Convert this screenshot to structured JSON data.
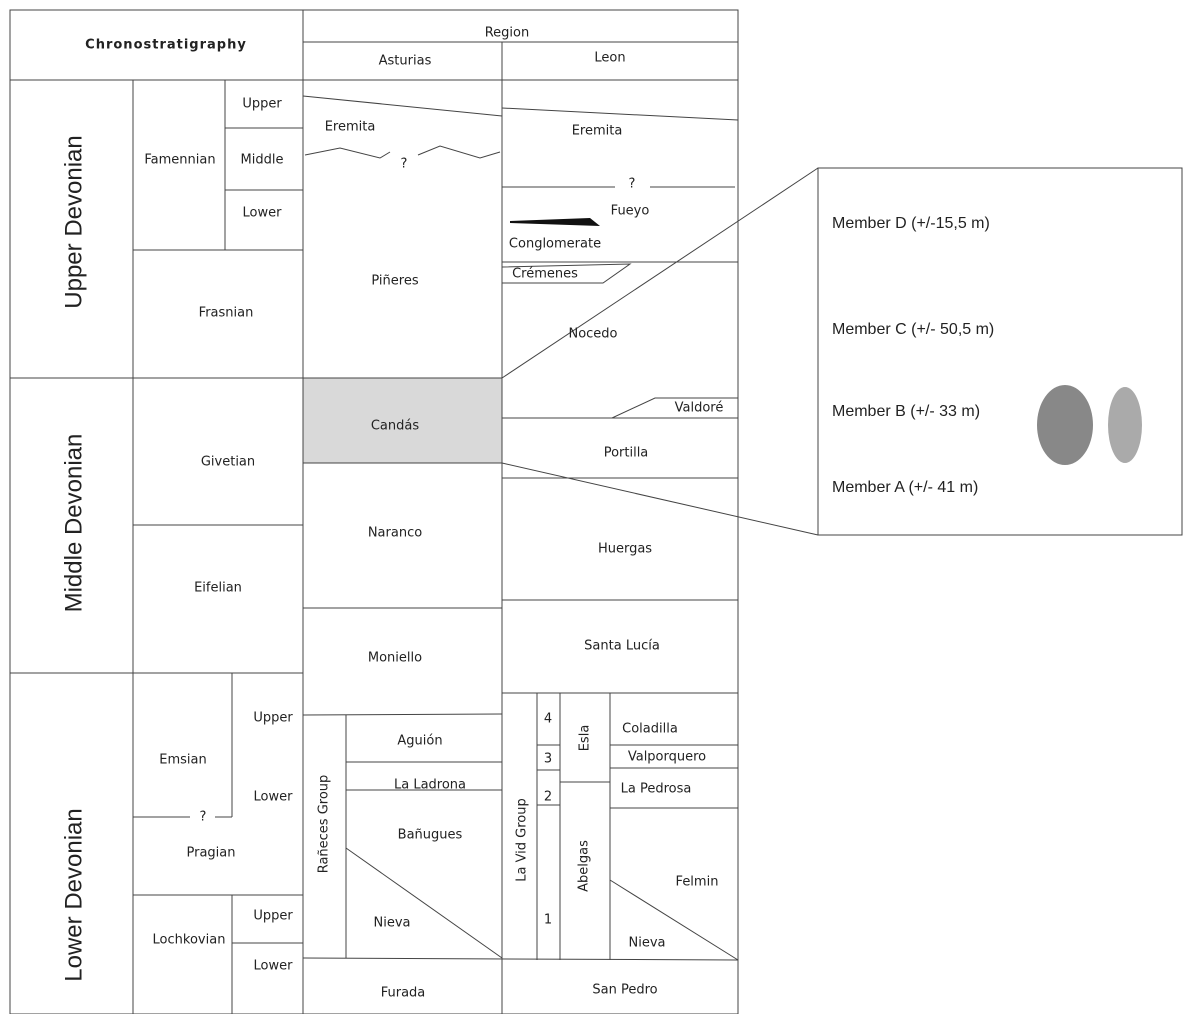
{
  "header": {
    "chronostratigraphy": "Chronostratigraphy",
    "region": "Region",
    "asturias": "Asturias",
    "leon": "Leon"
  },
  "series": [
    "Upper Devonian",
    "Middle Devonian",
    "Lower Devonian"
  ],
  "stages": [
    "Famennian",
    "Frasnian",
    "Givetian",
    "Eifelian",
    "Emsian",
    "Pragian",
    "Lochkovian"
  ],
  "substages": [
    "Upper",
    "Middle",
    "Lower",
    "Upper",
    "Lower",
    "Upper",
    "Lower"
  ],
  "question_marks": [
    "?",
    "?",
    "?"
  ],
  "asturias": {
    "formations": [
      "Eremita",
      "Piñeres",
      "Candás",
      "Naranco",
      "Moniello",
      "Aguión",
      "La Ladrona",
      "Bañugues",
      "Nieva",
      "Furada"
    ],
    "group": "Rañeces Group"
  },
  "leon": {
    "formations": [
      "Eremita",
      "Fueyo",
      "Conglomerate",
      "Crémenes",
      "Nocedo",
      "Valdoré",
      "Portilla",
      "Huergas",
      "Santa Lucía",
      "Coladilla",
      "Valporquero",
      "La Pedrosa",
      "Felmin",
      "Nieva",
      "San Pedro",
      "Abelgas",
      "Esla"
    ],
    "group": "La Vid Group",
    "units": [
      4,
      3,
      2,
      1
    ]
  },
  "members": [
    "Member D (+/-15,5 m)",
    "Member C (+/- 50,5 m)",
    "Member B (+/- 33 m)",
    "Member A (+/- 41 m)"
  ]
}
